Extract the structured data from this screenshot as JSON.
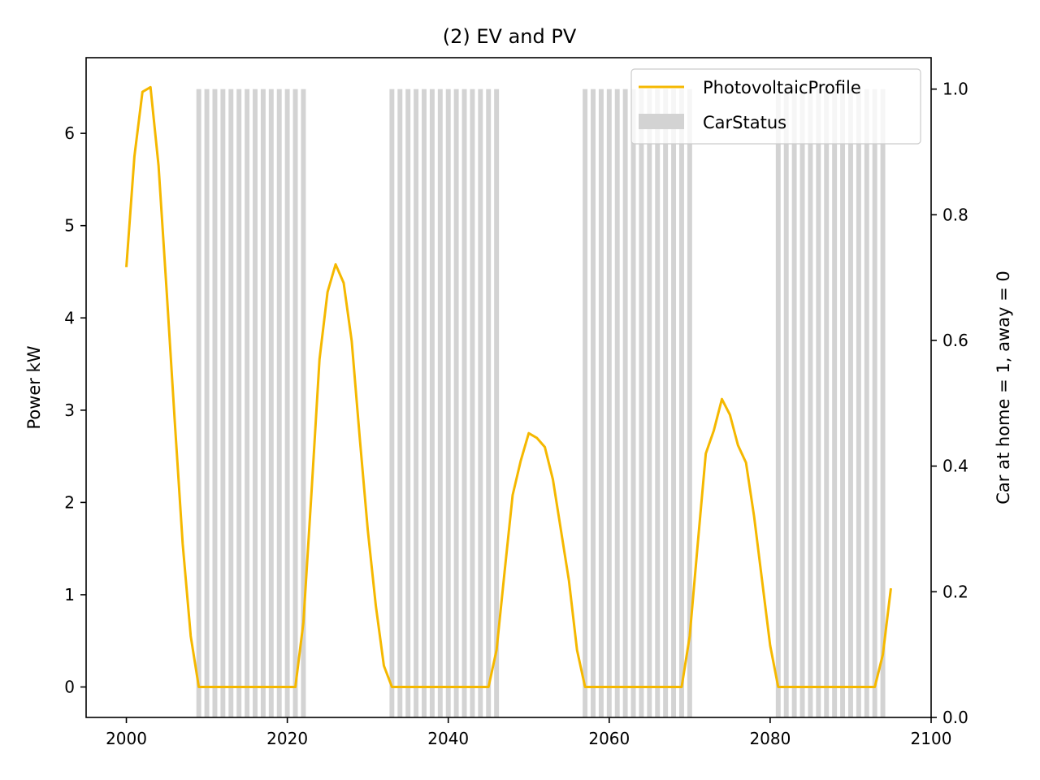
{
  "chart_data": {
    "type": "line",
    "title": "(2) EV and PV",
    "xlabel": "",
    "ylabel": "Power kW",
    "ylabel_right": "Car at home = 1, away = 0",
    "xlim": [
      1995,
      2100
    ],
    "ylim": [
      -0.33,
      6.82
    ],
    "ylim_right": [
      0.0,
      1.05
    ],
    "x_ticks": [
      2000,
      2020,
      2040,
      2060,
      2080,
      2100
    ],
    "y_ticks": [
      0,
      1,
      2,
      3,
      4,
      5,
      6
    ],
    "y_ticks_right": [
      0.0,
      0.2,
      0.4,
      0.6,
      0.8,
      1.0
    ],
    "y_tick_labels_right": [
      "0.0",
      "0.2",
      "0.4",
      "0.6",
      "0.8",
      "1.0"
    ],
    "grid": false,
    "legend": {
      "location": "top-right",
      "entries": [
        "PhotovoltaicProfile",
        "CarStatus"
      ]
    },
    "colors": {
      "pv_line": "#f5b800",
      "car_status": "#d3d3d3"
    },
    "series": [
      {
        "name": "PhotovoltaicProfile",
        "axis": "left",
        "x": [
          2000,
          2001,
          2002,
          2003,
          2004,
          2005,
          2006,
          2007,
          2008,
          2009,
          2010,
          2011,
          2012,
          2013,
          2014,
          2015,
          2016,
          2017,
          2018,
          2019,
          2020,
          2021,
          2022,
          2023,
          2024,
          2025,
          2026,
          2027,
          2028,
          2029,
          2030,
          2031,
          2032,
          2033,
          2034,
          2035,
          2036,
          2037,
          2038,
          2039,
          2040,
          2041,
          2042,
          2043,
          2044,
          2045,
          2046,
          2047,
          2048,
          2049,
          2050,
          2051,
          2052,
          2053,
          2054,
          2055,
          2056,
          2057,
          2058,
          2059,
          2060,
          2061,
          2062,
          2063,
          2064,
          2065,
          2066,
          2067,
          2068,
          2069,
          2070,
          2071,
          2072,
          2073,
          2074,
          2075,
          2076,
          2077,
          2078,
          2079,
          2080,
          2081,
          2082,
          2083,
          2084,
          2085,
          2086,
          2087,
          2088,
          2089,
          2090,
          2091,
          2092,
          2093,
          2094,
          2095
        ],
        "values": [
          4.55,
          5.75,
          6.45,
          6.5,
          5.65,
          4.3,
          2.9,
          1.55,
          0.55,
          0,
          0,
          0,
          0,
          0,
          0,
          0,
          0,
          0,
          0,
          0,
          0,
          0,
          0.7,
          2.1,
          3.55,
          4.28,
          4.58,
          4.38,
          3.75,
          2.7,
          1.7,
          0.88,
          0.23,
          0,
          0,
          0,
          0,
          0,
          0,
          0,
          0,
          0,
          0,
          0,
          0,
          0,
          0.4,
          1.25,
          2.08,
          2.45,
          2.75,
          2.7,
          2.6,
          2.25,
          1.7,
          1.15,
          0.4,
          0,
          0,
          0,
          0,
          0,
          0,
          0,
          0,
          0,
          0,
          0,
          0,
          0,
          0.55,
          1.55,
          2.53,
          2.78,
          3.12,
          2.95,
          2.62,
          2.43,
          1.85,
          1.15,
          0.45,
          0,
          0,
          0,
          0,
          0,
          0,
          0,
          0,
          0,
          0,
          0,
          0,
          0,
          0.35,
          1.07
        ]
      },
      {
        "name": "CarStatus",
        "axis": "right",
        "bar_width": 0.6,
        "x": [
          2009,
          2010,
          2011,
          2012,
          2013,
          2014,
          2015,
          2016,
          2017,
          2018,
          2019,
          2020,
          2021,
          2022,
          2033,
          2034,
          2035,
          2036,
          2037,
          2038,
          2039,
          2040,
          2041,
          2042,
          2043,
          2044,
          2045,
          2046,
          2057,
          2058,
          2059,
          2060,
          2061,
          2062,
          2063,
          2064,
          2065,
          2066,
          2067,
          2068,
          2069,
          2070,
          2081,
          2082,
          2083,
          2084,
          2085,
          2086,
          2087,
          2088,
          2089,
          2090,
          2091,
          2092,
          2093,
          2094
        ],
        "values": [
          1,
          1,
          1,
          1,
          1,
          1,
          1,
          1,
          1,
          1,
          1,
          1,
          1,
          1,
          1,
          1,
          1,
          1,
          1,
          1,
          1,
          1,
          1,
          1,
          1,
          1,
          1,
          1,
          1,
          1,
          1,
          1,
          1,
          1,
          1,
          1,
          1,
          1,
          1,
          1,
          1,
          1,
          1,
          1,
          1,
          1,
          1,
          1,
          1,
          1,
          1,
          1,
          1,
          1,
          1,
          1
        ]
      }
    ]
  }
}
